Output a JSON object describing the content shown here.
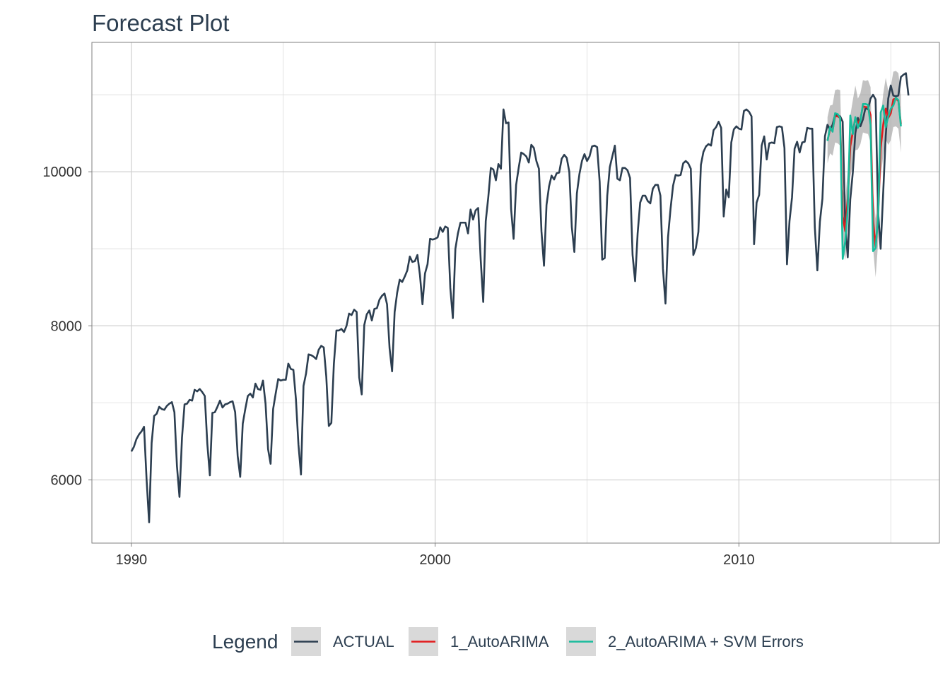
{
  "chart_data": {
    "type": "line",
    "title": "Forecast Plot",
    "xlabel": "",
    "ylabel": "",
    "xlim": [
      1988.7,
      2016.6
    ],
    "ylim": [
      5180,
      11680
    ],
    "x_ticks": [
      1990,
      2000,
      2010
    ],
    "y_ticks": [
      6000,
      8000,
      10000
    ],
    "grid": true,
    "legend": {
      "title": "Legend",
      "position": "bottom",
      "entries": [
        "ACTUAL",
        "1_AutoARIMA",
        "2_AutoARIMA + SVM Errors"
      ]
    },
    "colors": {
      "actual": "#2c3e50",
      "autoarima": "#e31a1c",
      "svm": "#18bc9c",
      "band": "#999999",
      "grid": "#dcdcdc",
      "panel_border": "#7f7f7f"
    },
    "series": [
      {
        "name": "ACTUAL",
        "start": 1990.0,
        "step": 0.08333,
        "values": [
          6370,
          6430,
          6530,
          6590,
          6630,
          6690,
          6010,
          5450,
          6480,
          6830,
          6860,
          6950,
          6920,
          6910,
          6960,
          6990,
          7010,
          6880,
          6180,
          5780,
          6550,
          6980,
          6990,
          7040,
          7030,
          7170,
          7150,
          7180,
          7140,
          7090,
          6470,
          6060,
          6870,
          6880,
          6950,
          7030,
          6940,
          6980,
          6990,
          7010,
          7020,
          6880,
          6310,
          6040,
          6730,
          6920,
          7090,
          7120,
          7070,
          7250,
          7180,
          7170,
          7290,
          6990,
          6400,
          6210,
          6920,
          7120,
          7310,
          7290,
          7300,
          7300,
          7510,
          7440,
          7430,
          7050,
          6460,
          6070,
          7220,
          7380,
          7630,
          7620,
          7600,
          7570,
          7690,
          7740,
          7720,
          7340,
          6700,
          6740,
          7510,
          7940,
          7940,
          7960,
          7920,
          8000,
          8160,
          8140,
          8210,
          8180,
          7330,
          7110,
          8010,
          8150,
          8200,
          8070,
          8220,
          8230,
          8340,
          8390,
          8420,
          8280,
          7710,
          7410,
          8180,
          8430,
          8600,
          8570,
          8640,
          8720,
          8900,
          8830,
          8840,
          8920,
          8660,
          8280,
          8680,
          8800,
          9130,
          9120,
          9130,
          9150,
          9280,
          9220,
          9290,
          9270,
          8490,
          8100,
          9000,
          9200,
          9340,
          9340,
          9340,
          9200,
          9510,
          9380,
          9500,
          9530,
          8860,
          8310,
          9360,
          9670,
          10050,
          10030,
          9890,
          10100,
          10040,
          10810,
          10630,
          10640,
          9520,
          9130,
          9830,
          10050,
          10250,
          10230,
          10200,
          10120,
          10350,
          10310,
          10140,
          10040,
          9230,
          8780,
          9570,
          9810,
          9950,
          9900,
          9980,
          9990,
          10170,
          10220,
          10180,
          10000,
          9280,
          8960,
          9720,
          9970,
          10140,
          10230,
          10140,
          10200,
          10330,
          10340,
          10320,
          9870,
          8860,
          8880,
          9690,
          10060,
          10200,
          10340,
          9910,
          9890,
          10050,
          10050,
          10020,
          9920,
          8920,
          8580,
          9200,
          9600,
          9690,
          9690,
          9620,
          9590,
          9780,
          9830,
          9830,
          9690,
          8740,
          8290,
          9150,
          9520,
          9820,
          9960,
          9950,
          9960,
          10110,
          10140,
          10110,
          10040,
          8920,
          9010,
          9220,
          10090,
          10260,
          10330,
          10360,
          10340,
          10540,
          10580,
          10650,
          10570,
          9420,
          9770,
          9670,
          10380,
          10550,
          10590,
          10560,
          10550,
          10790,
          10810,
          10780,
          10720,
          9060,
          9600,
          9700,
          10340,
          10460,
          10160,
          10370,
          10380,
          10370,
          10580,
          10590,
          10580,
          10310,
          8800,
          9360,
          9670,
          10300,
          10390,
          10250,
          10380,
          10390,
          10570,
          10560,
          10560,
          9280,
          8720,
          9350,
          9650,
          10460,
          10610,
          10550,
          10610,
          10740,
          10730,
          10720,
          10650,
          9330,
          8890,
          9640,
          9990,
          10500,
          10700,
          10590,
          10680,
          10830,
          10810,
          10950,
          11000,
          10940,
          9480,
          9000,
          9720,
          10460,
          10950,
          11120,
          10990,
          10980,
          10990,
          11230,
          11260,
          11280,
          10990
        ]
      },
      {
        "name": "1_AutoARIMA",
        "start": 2012.917,
        "step": 0.08333,
        "values": [
          10410,
          10550,
          10540,
          10720,
          10720,
          10700,
          9420,
          9230,
          9660,
          10330,
          10520,
          10700,
          10620,
          10690,
          10850,
          10840,
          10840,
          10740,
          9380,
          9010,
          9460,
          10310,
          10610,
          10820,
          10700,
          10760,
          10940,
          10950,
          10920,
          10620
        ]
      },
      {
        "name": "2_AutoARIMA + SVM Errors",
        "start": 2012.917,
        "step": 0.08333,
        "values": [
          10400,
          10580,
          10520,
          10760,
          10750,
          10700,
          8870,
          9100,
          9510,
          10730,
          10490,
          10710,
          10570,
          10660,
          10880,
          10880,
          10870,
          10610,
          8970,
          9010,
          9420,
          10770,
          10860,
          10580,
          10720,
          10820,
          10860,
          10960,
          10930,
          10590
        ]
      }
    ],
    "confidence_band": {
      "start": 2012.917,
      "step": 0.08333,
      "half_width": [
        300,
        310,
        330,
        340,
        350,
        360,
        370,
        380,
        390,
        400,
        410,
        420,
        330,
        330,
        340,
        340,
        350,
        360,
        370,
        380,
        380,
        390,
        400,
        400,
        350,
        350,
        360,
        360,
        360,
        370
      ]
    }
  }
}
